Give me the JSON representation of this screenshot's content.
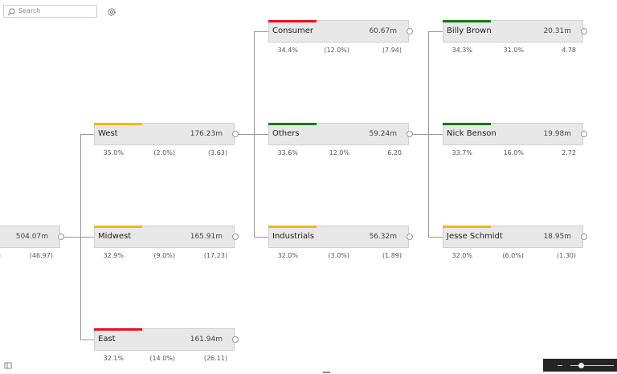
{
  "search": {
    "placeholder": "Search"
  },
  "root": {
    "value": "504.07m",
    "color": "#f2b811",
    "metrics": [
      ")",
      "(46.97)"
    ]
  },
  "levels": [
    [
      {
        "name": "West",
        "value": "176.23m",
        "color": "#f2b811",
        "metrics": [
          "35.0%",
          "(2.0%)",
          "(3.63)"
        ]
      },
      {
        "name": "Midwest",
        "value": "165.91m",
        "color": "#f2b811",
        "metrics": [
          "32.9%",
          "(9.0%)",
          "(17.23)"
        ]
      },
      {
        "name": "East",
        "value": "161.94m",
        "color": "#e81123",
        "metrics": [
          "32.1%",
          "(14.0%)",
          "(26.11)"
        ]
      }
    ],
    [
      {
        "name": "Consumer",
        "value": "60.67m",
        "color": "#e81123",
        "metrics": [
          "34.4%",
          "(12.0%)",
          "(7.94)"
        ]
      },
      {
        "name": "Others",
        "value": "59.24m",
        "color": "#107c10",
        "metrics": [
          "33.6%",
          "12.0%",
          "6.20"
        ]
      },
      {
        "name": "Industrials",
        "value": "56.32m",
        "color": "#f2b811",
        "metrics": [
          "32.0%",
          "(3.0%)",
          "(1.89)"
        ]
      }
    ],
    [
      {
        "name": "Billy Brown",
        "value": "20.31m",
        "color": "#107c10",
        "metrics": [
          "34.3%",
          "31.0%",
          "4.78"
        ]
      },
      {
        "name": "Nick Benson",
        "value": "19.98m",
        "color": "#107c10",
        "metrics": [
          "33.7%",
          "16.0%",
          "2.72"
        ]
      },
      {
        "name": "Jesse Schmidt",
        "value": "18.95m",
        "color": "#f2b811",
        "metrics": [
          "32.0%",
          "(6.0%)",
          "(1.30)"
        ]
      }
    ]
  ]
}
